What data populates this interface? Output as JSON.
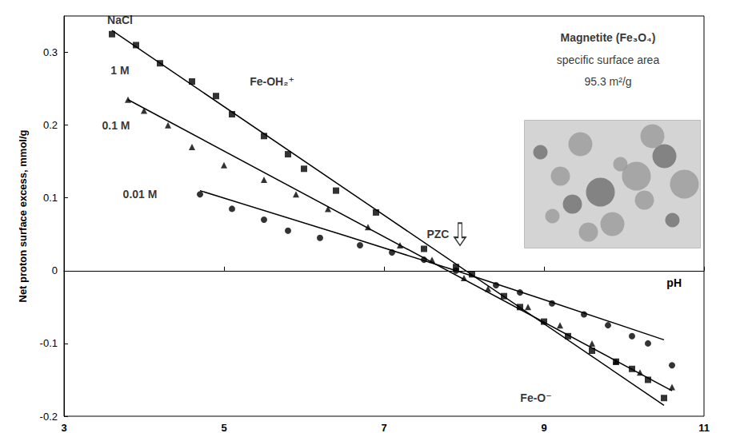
{
  "chart_data": {
    "type": "scatter",
    "y_label": "Net proton surface excess, mmol/g",
    "x_label": "pH",
    "xlim": [
      3,
      11
    ],
    "xticks": [
      3,
      5,
      7,
      9,
      11
    ],
    "ylim": [
      -0.2,
      0.35
    ],
    "yticks": [
      -0.2,
      -0.1,
      0,
      0.1,
      0.2,
      0.3
    ],
    "grid": false,
    "series": [
      {
        "marker": "square",
        "color": "#000000",
        "x": [
          3.6,
          3.9,
          4.2,
          4.6,
          4.9,
          5.1,
          5.5,
          5.8,
          6.0,
          6.4,
          6.9,
          7.5,
          7.9,
          8.1,
          8.5,
          8.7,
          9.0,
          9.3,
          9.6,
          9.9,
          10.1,
          10.3,
          10.5
        ],
        "values": [
          0.325,
          0.31,
          0.285,
          0.26,
          0.24,
          0.215,
          0.185,
          0.16,
          0.14,
          0.11,
          0.08,
          0.03,
          0.005,
          -0.005,
          -0.035,
          -0.05,
          -0.07,
          -0.09,
          -0.11,
          -0.125,
          -0.135,
          -0.15,
          -0.175
        ],
        "fit": {
          "line_style": "solid",
          "x": [
            3.6,
            10.5
          ],
          "values": [
            0.33,
            -0.185
          ]
        }
      },
      {
        "marker": "triangle",
        "color": "#000000",
        "x": [
          3.8,
          4.0,
          4.3,
          4.6,
          5.0,
          5.5,
          5.9,
          6.3,
          6.8,
          7.2,
          7.6,
          8.0,
          8.3,
          8.8,
          9.2,
          9.6,
          9.9,
          10.2,
          10.6
        ],
        "values": [
          0.235,
          0.22,
          0.2,
          0.17,
          0.145,
          0.125,
          0.105,
          0.085,
          0.06,
          0.035,
          0.015,
          -0.01,
          -0.025,
          -0.05,
          -0.075,
          -0.1,
          -0.125,
          -0.14,
          -0.16
        ],
        "fit": {
          "line_style": "solid",
          "x": [
            3.8,
            10.6
          ],
          "values": [
            0.235,
            -0.165
          ]
        }
      },
      {
        "marker": "circle",
        "color": "#000000",
        "x": [
          4.7,
          5.1,
          5.5,
          5.8,
          6.2,
          6.7,
          7.1,
          7.5,
          7.9,
          8.4,
          8.7,
          9.1,
          9.5,
          9.8,
          10.1,
          10.3,
          10.6
        ],
        "values": [
          0.105,
          0.085,
          0.07,
          0.055,
          0.045,
          0.035,
          0.025,
          0.015,
          0.0,
          -0.02,
          -0.03,
          -0.045,
          -0.06,
          -0.075,
          -0.09,
          -0.1,
          -0.13
        ],
        "fit": {
          "line_style": "solid",
          "x": [
            4.7,
            7.9,
            10.5
          ],
          "values": [
            0.11,
            0.0,
            -0.095
          ]
        }
      }
    ],
    "annotations": [
      {
        "text": "NaCl",
        "x": 3.7,
        "y": 0.345
      },
      {
        "text": "1 M",
        "x": 3.7,
        "y": 0.275
      },
      {
        "text": "0.1 M",
        "x": 3.65,
        "y": 0.2
      },
      {
        "text": "0.01 M",
        "x": 3.95,
        "y": 0.105
      },
      {
        "text": "Fe-OH₂⁺",
        "x": 5.6,
        "y": 0.26
      },
      {
        "text": "PZC",
        "x": 7.95,
        "y": 0.05,
        "marker": "arrow"
      },
      {
        "text": "Fe-O⁻",
        "x": 8.9,
        "y": -0.175
      }
    ],
    "inset": {
      "x": 9.8,
      "title": "Magnetite (Fe₃O₄)",
      "title_y": 0.32,
      "lines": [
        {
          "text": "specific surface area",
          "y": 0.29
        },
        {
          "text": "95.3 m²/g",
          "y": 0.26
        }
      ]
    }
  }
}
